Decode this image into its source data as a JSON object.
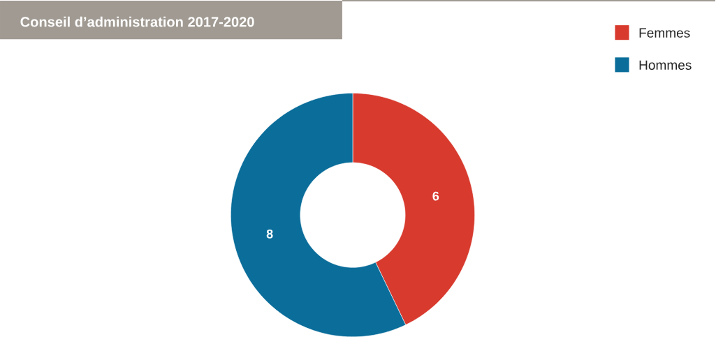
{
  "chart_data": {
    "type": "donut",
    "title": "Conseil d’administration 2017-2020",
    "categories": [
      "Femmes",
      "Hommes"
    ],
    "values": [
      6,
      8
    ],
    "colors": [
      "#d83a2e",
      "#0a6d9a"
    ],
    "data_labels": true,
    "legend": "top right"
  }
}
